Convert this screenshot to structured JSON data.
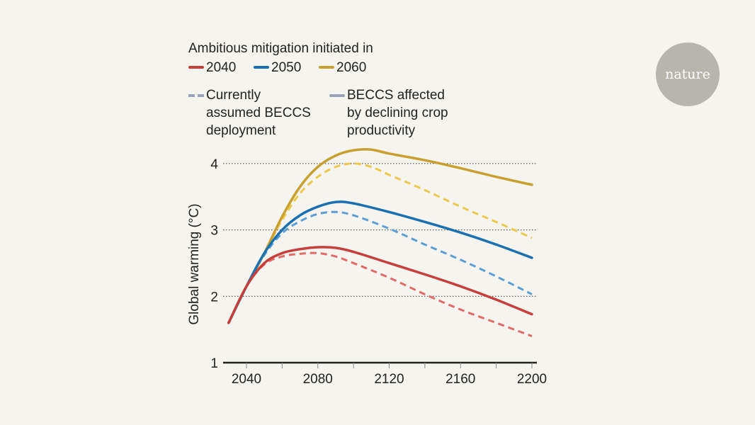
{
  "logo": "nature",
  "legend": {
    "title": "Ambitious mitigation initiated in",
    "years": [
      {
        "label": "2040",
        "color": "#c63f3a"
      },
      {
        "label": "2050",
        "color": "#1b70b1"
      },
      {
        "label": "2060",
        "color": "#c9a030"
      }
    ],
    "dashed_label": [
      "Currently",
      "assumed BECCS",
      "deployment"
    ],
    "solid_label": [
      "BECCS affected",
      "by declining crop",
      "productivity"
    ]
  },
  "chart_data": {
    "type": "line",
    "title": "",
    "xlabel": "",
    "ylabel": "Global warming (°C)",
    "xlim": [
      2030,
      2200
    ],
    "ylim": [
      1,
      4.3
    ],
    "xticks": [
      2040,
      2080,
      2120,
      2160,
      2200
    ],
    "minor_xticks": [
      2060,
      2100,
      2140,
      2180
    ],
    "yticks": [
      1,
      2,
      3,
      4
    ],
    "grid": "dotted horizontal",
    "series": [
      {
        "name": "2040",
        "style": "dashed",
        "color": "#e06b68",
        "x": [
          2030,
          2040,
          2050,
          2060,
          2070,
          2080,
          2090,
          2100,
          2120,
          2140,
          2160,
          2180,
          2200
        ],
        "y": [
          1.6,
          2.15,
          2.48,
          2.6,
          2.64,
          2.65,
          2.6,
          2.5,
          2.28,
          2.03,
          1.8,
          1.6,
          1.4
        ]
      },
      {
        "name": "2050",
        "style": "dashed",
        "color": "#5b9fd6",
        "x": [
          2030,
          2040,
          2050,
          2060,
          2070,
          2080,
          2090,
          2100,
          2120,
          2140,
          2160,
          2180,
          2200
        ],
        "y": [
          1.6,
          2.15,
          2.62,
          2.95,
          3.13,
          3.24,
          3.27,
          3.22,
          3.02,
          2.78,
          2.55,
          2.3,
          2.03
        ]
      },
      {
        "name": "2060",
        "style": "dashed",
        "color": "#ecc94c",
        "x": [
          2030,
          2040,
          2050,
          2060,
          2070,
          2080,
          2090,
          2100,
          2110,
          2120,
          2140,
          2160,
          2180,
          2200
        ],
        "y": [
          1.6,
          2.15,
          2.65,
          3.15,
          3.55,
          3.8,
          3.95,
          4.0,
          3.95,
          3.83,
          3.6,
          3.35,
          3.12,
          2.88
        ]
      },
      {
        "name": "2060",
        "style": "solid",
        "color": "#c9a030",
        "x": [
          2030,
          2040,
          2050,
          2060,
          2070,
          2080,
          2090,
          2100,
          2110,
          2120,
          2140,
          2160,
          2180,
          2200
        ],
        "y": [
          1.6,
          2.15,
          2.65,
          3.2,
          3.65,
          3.95,
          4.12,
          4.2,
          4.21,
          4.15,
          4.05,
          3.93,
          3.8,
          3.68
        ]
      },
      {
        "name": "2050",
        "style": "solid",
        "color": "#1b70b1",
        "x": [
          2030,
          2040,
          2050,
          2060,
          2070,
          2080,
          2090,
          2100,
          2120,
          2140,
          2160,
          2180,
          2200
        ],
        "y": [
          1.6,
          2.15,
          2.65,
          3.0,
          3.22,
          3.35,
          3.42,
          3.4,
          3.27,
          3.12,
          2.96,
          2.78,
          2.58
        ]
      },
      {
        "name": "2040",
        "style": "solid",
        "color": "#c63f3a",
        "x": [
          2030,
          2040,
          2050,
          2060,
          2070,
          2080,
          2090,
          2100,
          2120,
          2140,
          2160,
          2180,
          2200
        ],
        "y": [
          1.6,
          2.15,
          2.5,
          2.65,
          2.71,
          2.74,
          2.73,
          2.67,
          2.5,
          2.33,
          2.15,
          1.95,
          1.73
        ]
      }
    ]
  }
}
